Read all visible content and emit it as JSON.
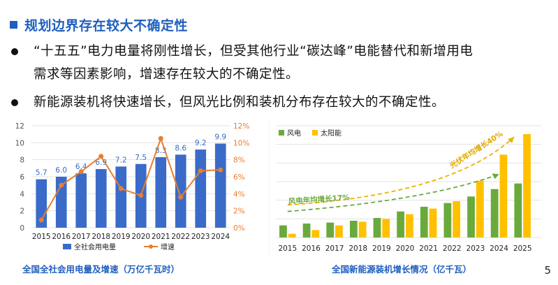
{
  "heading": "规划边界存在较大不确定性",
  "bullets": [
    {
      "line1": "“十五五”电力电量将刚性增长，但受其他行业“碳达峰”电能替代和新增用电",
      "line2": "需求等因素影响，增速存在较大的不确定性。"
    },
    {
      "line1": "新能源装机将快速增长，但风光比例和装机分布存在较大的不确定性。"
    }
  ],
  "page_number": "5",
  "colors": {
    "accent": "#1f5fbf",
    "bar": "#3a6bc9",
    "line": "#e67e33",
    "wind": "#6aaa3c",
    "solar": "#ffc000"
  },
  "chart_data": [
    {
      "type": "bar",
      "title": "全国全社会用电量及增速（万亿千瓦时）",
      "categories": [
        "2015",
        "2016",
        "2017",
        "2018",
        "2019",
        "2020",
        "2021",
        "2022",
        "2023",
        "2024"
      ],
      "series": [
        {
          "name": "全社会用电量",
          "type": "bar",
          "values": [
            5.7,
            6.0,
            6.4,
            6.9,
            7.2,
            7.5,
            8.3,
            8.6,
            9.2,
            9.9
          ]
        },
        {
          "name": "增速",
          "type": "line",
          "axis": "right",
          "values": [
            0.9,
            5.0,
            6.6,
            8.4,
            4.6,
            3.8,
            10.5,
            3.6,
            6.7,
            6.8
          ]
        }
      ],
      "ylim": [
        0,
        12
      ],
      "yticks": [
        "0",
        "2",
        "4",
        "6",
        "8",
        "10",
        "12"
      ],
      "y2lim": [
        0,
        12
      ],
      "y2ticks": [
        "0%",
        "2%",
        "4%",
        "6%",
        "8%",
        "10%",
        "12%"
      ],
      "legend": "bottom",
      "grid": true
    },
    {
      "type": "bar",
      "title": "全国新能源装机增长情况（亿千瓦）",
      "categories": [
        "2015",
        "2016",
        "2017",
        "2018",
        "2019",
        "2020",
        "2021",
        "2022",
        "2023",
        "2024",
        "2025"
      ],
      "series": [
        {
          "name": "风电",
          "values": [
            1.3,
            1.5,
            1.6,
            1.8,
            2.1,
            2.8,
            3.3,
            3.7,
            4.4,
            5.2,
            5.8
          ]
        },
        {
          "name": "太阳能",
          "values": [
            0.4,
            0.8,
            1.3,
            1.7,
            2.0,
            2.5,
            3.1,
            3.9,
            6.1,
            8.9,
            11.1
          ]
        }
      ],
      "ylim": [
        0,
        12
      ],
      "yticks": [
        "0",
        "2",
        "4",
        "6",
        "8",
        "10",
        "12"
      ],
      "annotations": [
        "风电年均增长17%",
        "光伏年均增长40%"
      ],
      "legend": "top-left",
      "grid": true
    }
  ]
}
